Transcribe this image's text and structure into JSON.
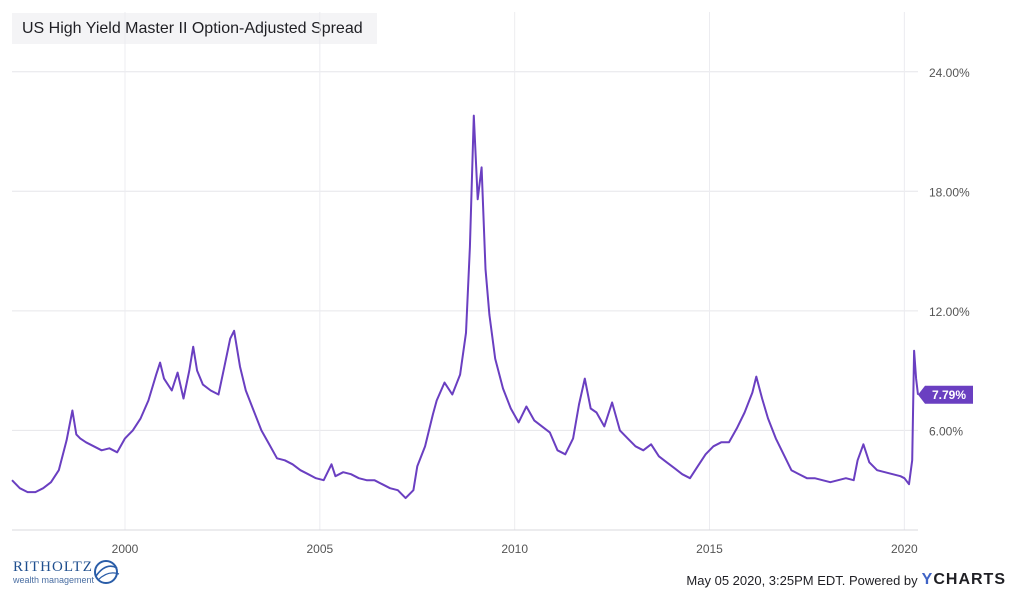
{
  "chart_data": {
    "type": "line",
    "title": "US High Yield Master II Option-Adjusted Spread",
    "x_ticks": [
      "2000",
      "2005",
      "2010",
      "2015",
      "2020"
    ],
    "y_ticks": [
      "6.00%",
      "12.00%",
      "18.00%",
      "24.00%"
    ],
    "xlim": [
      1997.1,
      2020.35
    ],
    "ylim": [
      1.0,
      27.0
    ],
    "grid": true,
    "latest_value": 7.79,
    "latest_label": "7.79%",
    "series": [
      {
        "color": "#6a3fc1",
        "x": [
          1997.1,
          1997.3,
          1997.5,
          1997.7,
          1997.9,
          1998.1,
          1998.3,
          1998.5,
          1998.65,
          1998.75,
          1998.85,
          1999.0,
          1999.2,
          1999.4,
          1999.6,
          1999.8,
          2000.0,
          2000.2,
          2000.4,
          2000.6,
          2000.8,
          2000.9,
          2001.0,
          2001.2,
          2001.35,
          2001.5,
          2001.65,
          2001.75,
          2001.85,
          2002.0,
          2002.2,
          2002.4,
          2002.55,
          2002.7,
          2002.8,
          2002.95,
          2003.1,
          2003.3,
          2003.5,
          2003.7,
          2003.9,
          2004.1,
          2004.3,
          2004.5,
          2004.7,
          2004.9,
          2005.1,
          2005.3,
          2005.4,
          2005.6,
          2005.8,
          2006.0,
          2006.2,
          2006.4,
          2006.6,
          2006.8,
          2007.0,
          2007.2,
          2007.4,
          2007.5,
          2007.7,
          2007.9,
          2008.0,
          2008.2,
          2008.4,
          2008.6,
          2008.75,
          2008.85,
          2008.95,
          2009.05,
          2009.15,
          2009.25,
          2009.35,
          2009.5,
          2009.7,
          2009.9,
          2010.1,
          2010.3,
          2010.5,
          2010.7,
          2010.9,
          2011.1,
          2011.3,
          2011.5,
          2011.65,
          2011.8,
          2011.95,
          2012.1,
          2012.3,
          2012.5,
          2012.7,
          2012.9,
          2013.1,
          2013.3,
          2013.5,
          2013.7,
          2013.9,
          2014.1,
          2014.3,
          2014.5,
          2014.7,
          2014.9,
          2015.1,
          2015.3,
          2015.5,
          2015.7,
          2015.9,
          2016.1,
          2016.2,
          2016.35,
          2016.5,
          2016.7,
          2016.9,
          2017.1,
          2017.3,
          2017.5,
          2017.7,
          2017.9,
          2018.1,
          2018.3,
          2018.5,
          2018.7,
          2018.8,
          2018.95,
          2019.1,
          2019.3,
          2019.5,
          2019.7,
          2019.9,
          2020.0,
          2020.12,
          2020.2,
          2020.25,
          2020.3,
          2020.35
        ],
        "values": [
          3.5,
          3.1,
          2.9,
          2.9,
          3.1,
          3.4,
          4.0,
          5.5,
          7.0,
          5.8,
          5.6,
          5.4,
          5.2,
          5.0,
          5.1,
          4.9,
          5.6,
          6.0,
          6.6,
          7.5,
          8.8,
          9.4,
          8.6,
          8.0,
          8.9,
          7.6,
          9.0,
          10.2,
          9.0,
          8.3,
          8.0,
          7.8,
          9.2,
          10.6,
          11.0,
          9.2,
          8.0,
          7.0,
          6.0,
          5.3,
          4.6,
          4.5,
          4.3,
          4.0,
          3.8,
          3.6,
          3.5,
          4.3,
          3.7,
          3.9,
          3.8,
          3.6,
          3.5,
          3.5,
          3.3,
          3.1,
          3.0,
          2.6,
          3.0,
          4.2,
          5.2,
          6.8,
          7.5,
          8.4,
          7.8,
          8.8,
          10.9,
          15.2,
          21.8,
          17.6,
          19.2,
          14.1,
          11.8,
          9.6,
          8.1,
          7.1,
          6.4,
          7.2,
          6.5,
          6.2,
          5.9,
          5.0,
          4.8,
          5.6,
          7.3,
          8.6,
          7.1,
          6.9,
          6.2,
          7.4,
          6.0,
          5.6,
          5.2,
          5.0,
          5.3,
          4.7,
          4.4,
          4.1,
          3.8,
          3.6,
          4.2,
          4.8,
          5.2,
          5.4,
          5.4,
          6.1,
          6.9,
          7.9,
          8.7,
          7.6,
          6.6,
          5.6,
          4.8,
          4.0,
          3.8,
          3.6,
          3.6,
          3.5,
          3.4,
          3.5,
          3.6,
          3.5,
          4.5,
          5.3,
          4.4,
          4.0,
          3.9,
          3.8,
          3.7,
          3.6,
          3.3,
          4.5,
          10.0,
          8.6,
          7.79
        ]
      }
    ]
  },
  "footer": {
    "logo_name": "RITHOLTZ",
    "logo_sub": "wealth management",
    "timestamp": "May 05 2020, 3:25PM EDT. Powered by",
    "brand_y": "Y",
    "brand_rest": "CHARTS"
  }
}
